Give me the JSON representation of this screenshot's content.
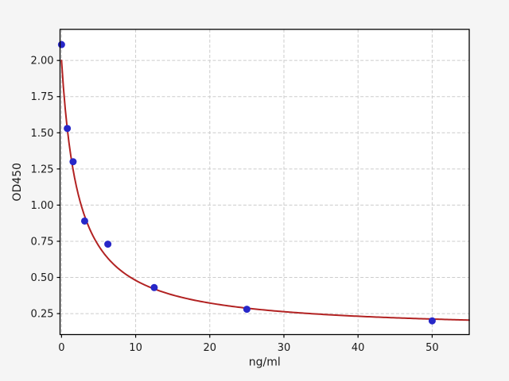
{
  "figure": {
    "background": "#f5f5f5",
    "plot_background": "#ffffff",
    "grid_color": "#cccccc",
    "axis_color": "#000000",
    "text_color": "#1a1a1a"
  },
  "chart_data": {
    "type": "scatter",
    "title": "",
    "xlabel": "ng/ml",
    "ylabel": "OD450",
    "xlim": [
      -0.2,
      55
    ],
    "ylim": [
      0.105,
      2.215
    ],
    "grid": true,
    "legend": "none",
    "x_ticks": [
      0,
      10,
      20,
      30,
      40,
      50
    ],
    "x_tick_labels": [
      "0",
      "10",
      "20",
      "30",
      "40",
      "50"
    ],
    "y_ticks": [
      0.25,
      0.5,
      0.75,
      1.0,
      1.25,
      1.5,
      1.75,
      2.0
    ],
    "y_tick_labels": [
      "0.25",
      "0.50",
      "0.75",
      "1.00",
      "1.25",
      "1.50",
      "1.75",
      "2.00"
    ],
    "series": [
      {
        "name": "standard-points",
        "kind": "scatter",
        "color": "#2727c8",
        "marker": "circle",
        "marker_radius": 4.5,
        "x": [
          0,
          0.78,
          1.56,
          3.12,
          6.25,
          12.5,
          25,
          50
        ],
        "y": [
          2.11,
          1.53,
          1.3,
          0.89,
          0.73,
          0.43,
          0.28,
          0.2
        ]
      },
      {
        "name": "fit-curve",
        "kind": "line",
        "color": "#b22222",
        "line_width": 2,
        "fit": {
          "model": "4PL",
          "a": 2.0,
          "b": 1.0,
          "c": 2.3,
          "d": 0.13,
          "x_start": 0,
          "x_end": 55
        }
      }
    ]
  }
}
